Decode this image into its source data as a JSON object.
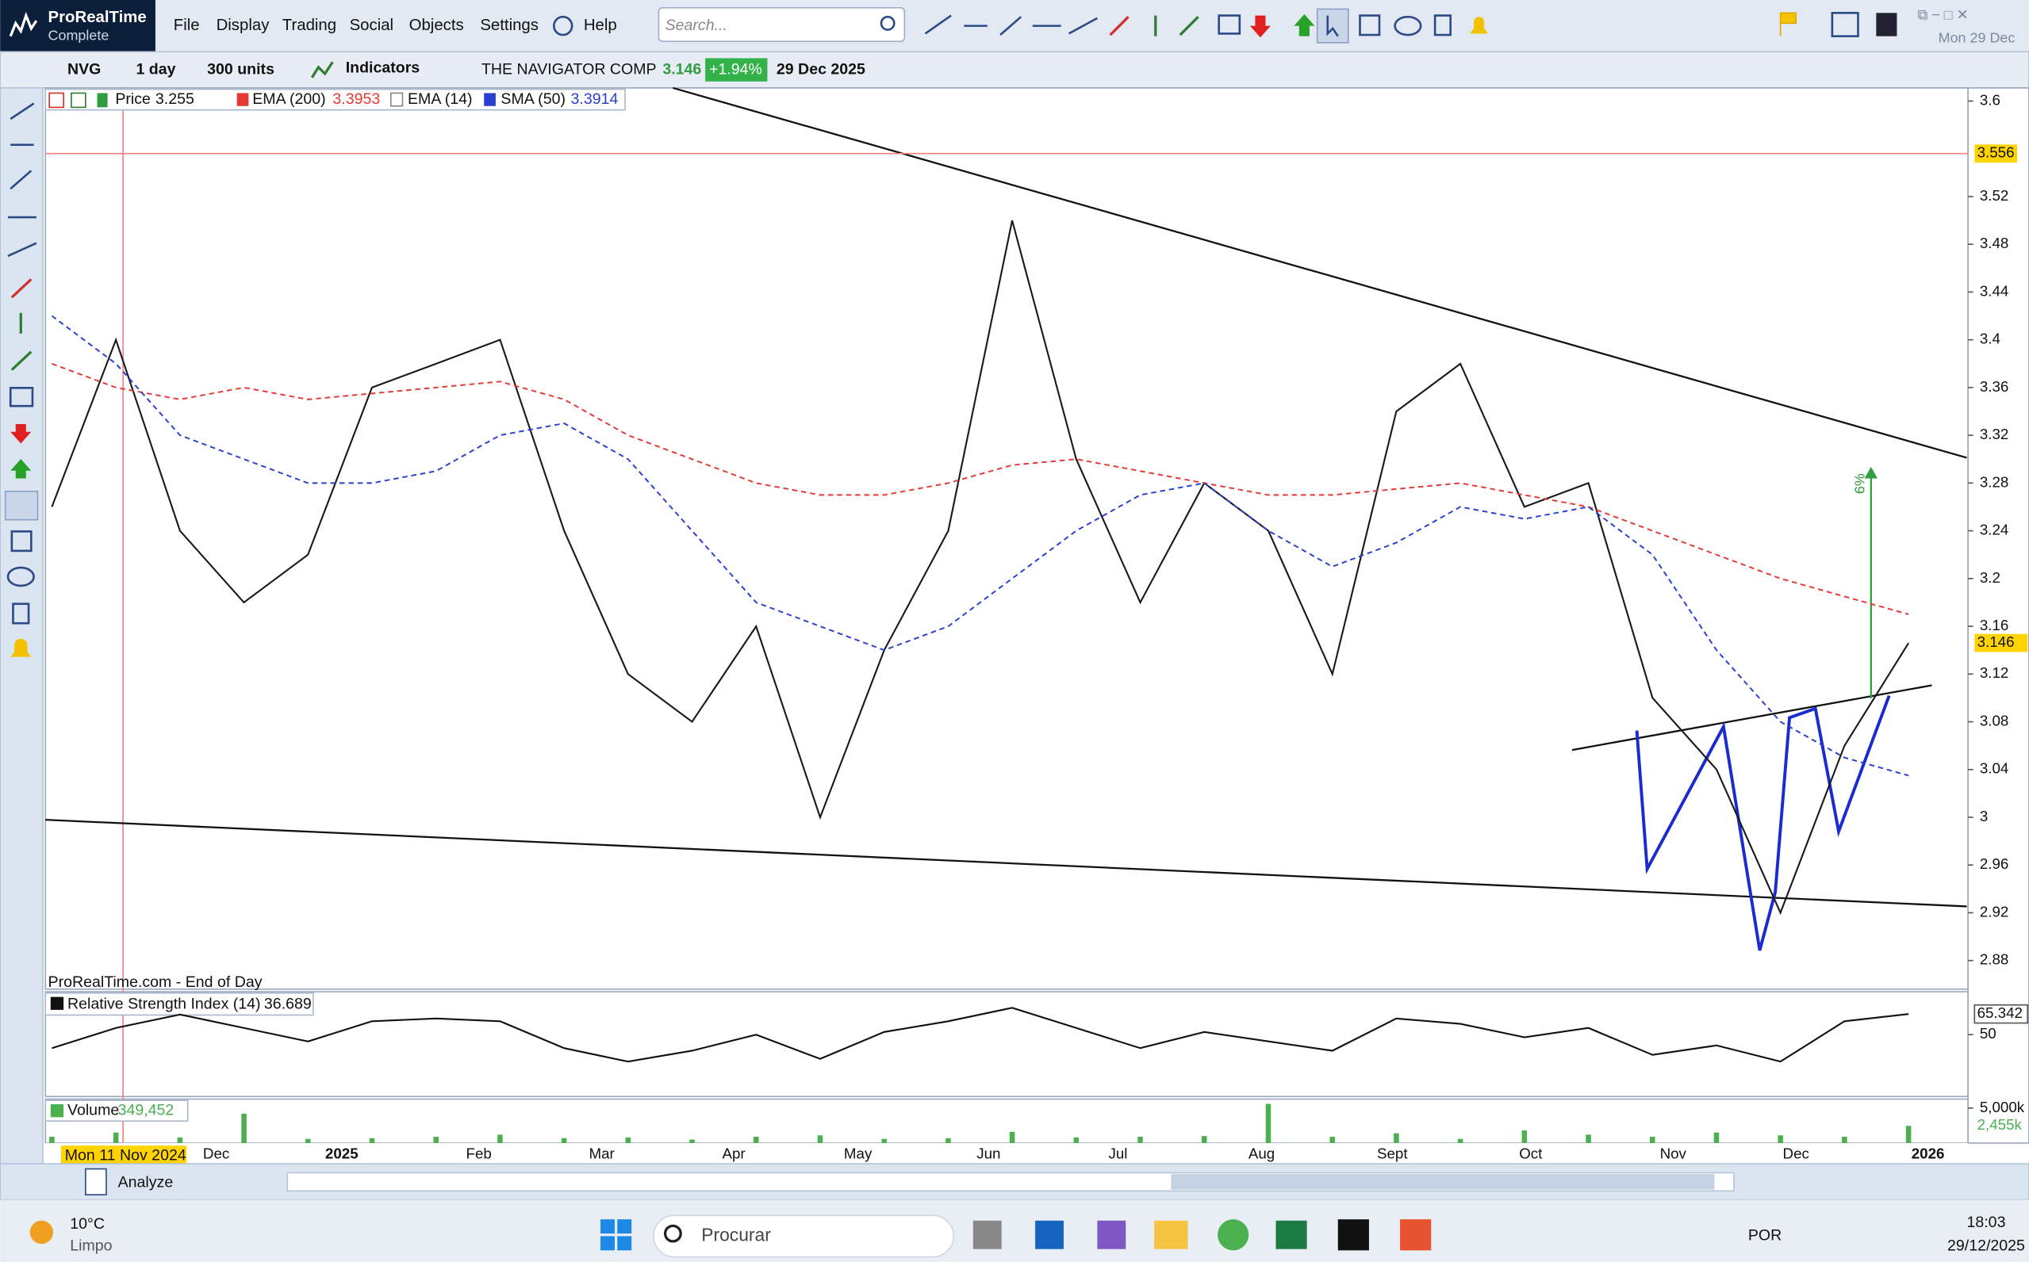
{
  "app": {
    "name": "ProRealTime",
    "edition": "Complete",
    "menu": [
      "File",
      "Display",
      "Trading",
      "Social",
      "Objects",
      "Settings",
      "Help"
    ],
    "search_placeholder": "Search...",
    "date": "Mon 29 Dec"
  },
  "toolbar": {
    "ticker": "NVG",
    "interval": "1 day",
    "units": "300 units",
    "indicators": "Indicators",
    "instrument": "THE NAVIGATOR COMP",
    "last": "3.146",
    "change": "+1.94%",
    "date": "29 Dec 2025"
  },
  "legend": {
    "price": "3.255",
    "ema200": "3.3953",
    "ema14_label": "EMA (14)",
    "sma50": "3.3914"
  },
  "watermark": "ProRealTime.com - End of Day",
  "crosshair_date": "Mon 11 Nov 2024",
  "annotation": "6%",
  "chart_data": [
    {
      "type": "line",
      "series": [
        {
          "name": "Price",
          "color": "#1a1a1a",
          "values": [
            3.26,
            3.4,
            3.24,
            3.18,
            3.22,
            3.36,
            3.38,
            3.4,
            3.24,
            3.12,
            3.08,
            3.16,
            3.0,
            3.14,
            3.24,
            3.5,
            3.3,
            3.18,
            3.28,
            3.24,
            3.12,
            3.34,
            3.38,
            3.26,
            3.28,
            3.1,
            3.04,
            2.92,
            3.06,
            3.146
          ]
        },
        {
          "name": "EMA (200)",
          "color": "#e53935",
          "dash": true,
          "values": [
            3.38,
            3.36,
            3.35,
            3.36,
            3.35,
            3.355,
            3.36,
            3.365,
            3.35,
            3.32,
            3.3,
            3.28,
            3.27,
            3.27,
            3.28,
            3.295,
            3.3,
            3.29,
            3.28,
            3.27,
            3.27,
            3.275,
            3.28,
            3.27,
            3.26,
            3.24,
            3.22,
            3.2,
            3.185,
            3.17
          ]
        },
        {
          "name": "SMA (50)",
          "color": "#2a3fd0",
          "dash": true,
          "values": [
            3.42,
            3.38,
            3.32,
            3.3,
            3.28,
            3.28,
            3.29,
            3.32,
            3.33,
            3.3,
            3.24,
            3.18,
            3.16,
            3.14,
            3.16,
            3.2,
            3.24,
            3.27,
            3.28,
            3.24,
            3.21,
            3.23,
            3.26,
            3.25,
            3.26,
            3.22,
            3.14,
            3.08,
            3.05,
            3.035
          ]
        }
      ],
      "ylim": [
        2.856,
        3.611
      ],
      "yticks": [
        3.6,
        3.52,
        3.48,
        3.44,
        3.4,
        3.36,
        3.32,
        3.28,
        3.24,
        3.2,
        3.16,
        3.12,
        3.08,
        3.04,
        3,
        2.96,
        2.92,
        2.88
      ],
      "reference_line": 3.556,
      "reference_color": "#f08080",
      "markers": [
        3.146
      ],
      "x_labels": [
        "Dec",
        "2025",
        "Feb",
        "Mar",
        "Apr",
        "May",
        "Jun",
        "Jul",
        "Aug",
        "Sept",
        "Oct",
        "Nov",
        "Dec",
        "2026"
      ]
    },
    {
      "type": "line",
      "title": "Relative Strength Index (14)",
      "current": "36.689",
      "series": [
        {
          "name": "RSI",
          "color": "#111111",
          "values": [
            40,
            55,
            65,
            55,
            45,
            60,
            62,
            60,
            40,
            30,
            38,
            50,
            32,
            52,
            60,
            70,
            55,
            40,
            52,
            45,
            38,
            62,
            58,
            48,
            55,
            35,
            42,
            30,
            60,
            65.342
          ]
        }
      ],
      "ylim": [
        4,
        79
      ],
      "yticks": [
        50
      ],
      "markers": [
        65.342
      ]
    },
    {
      "type": "bar",
      "title": "Volume",
      "current": "349,452",
      "series": [
        {
          "name": "Volume",
          "color": "#4caf50",
          "values": [
            900,
            1500,
            800,
            4200,
            600,
            700,
            900,
            1200,
            700,
            800,
            500,
            900,
            1100,
            600,
            700,
            1600,
            800,
            900,
            1000,
            5600,
            900,
            1400,
            600,
            1800,
            1200,
            900,
            1500,
            1100,
            900,
            2455
          ]
        }
      ],
      "ylim": [
        0,
        6100
      ],
      "yticks": [
        {
          "value": 5000,
          "label": "5,000k"
        }
      ],
      "markers": [
        {
          "value": 2455,
          "label": "2,455k"
        }
      ]
    }
  ],
  "bottom_bar": {
    "analyze": "Analyze"
  },
  "taskbar": {
    "temperature": "10°C",
    "weather": "Limpo",
    "search": "Procurar",
    "language": "POR",
    "time": "18:03",
    "date": "29/12/2025"
  }
}
